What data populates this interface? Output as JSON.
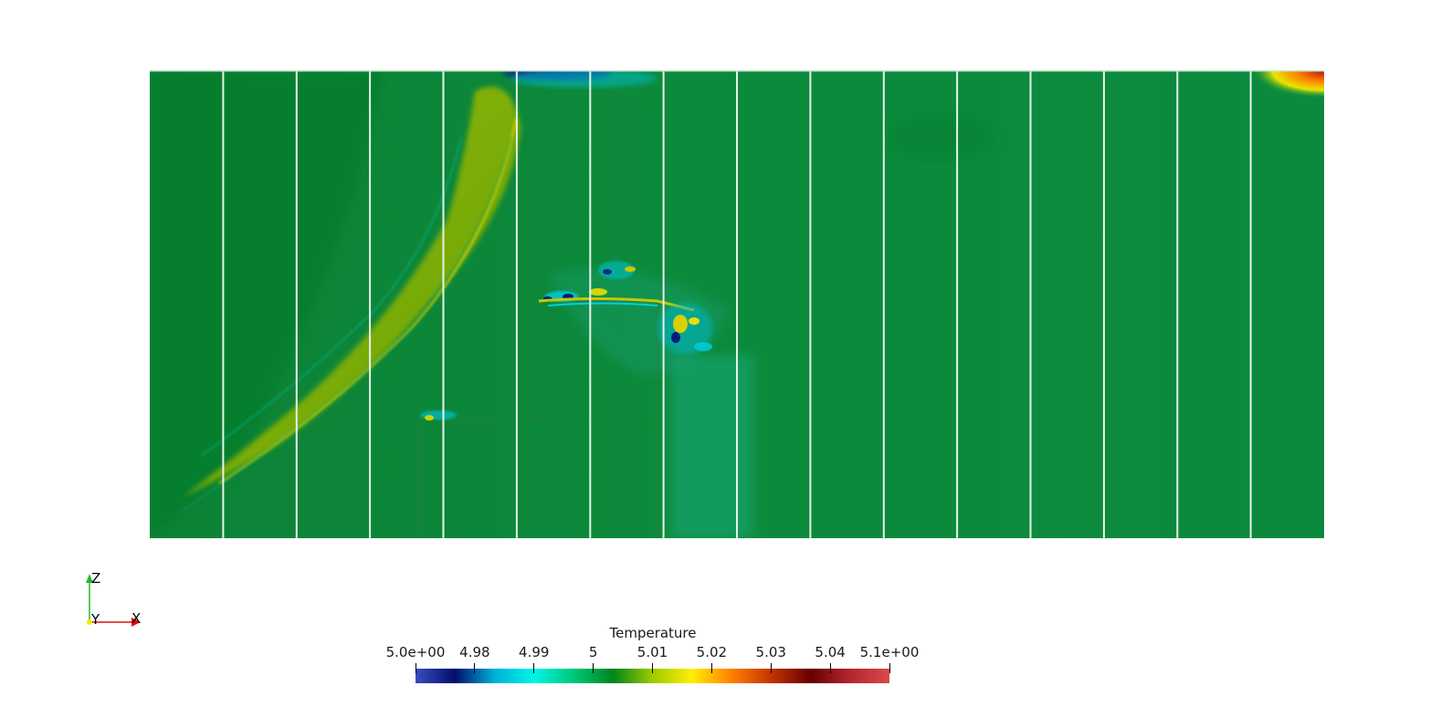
{
  "scalar_bar": {
    "title": "Temperature",
    "tick_labels": [
      "5.0e+00",
      "4.98",
      "4.99",
      "5",
      "5.01",
      "5.02",
      "5.03",
      "5.04",
      "5.1e+00"
    ],
    "range": [
      4.97,
      5.05
    ],
    "colormap": [
      "#3b4cc0",
      "#000f6b",
      "#00b0d8",
      "#00f5e8",
      "#00c87a",
      "#00851c",
      "#9ccb00",
      "#ffee00",
      "#ff8000",
      "#c43400",
      "#660000",
      "#b4262e",
      "#d94a4a"
    ]
  },
  "orientation_axes": {
    "z_label": "Z",
    "y_label": "Y",
    "x_label": "X",
    "z_color": "#22bb22",
    "x_color": "#dd1111",
    "y_color": "#eeee00"
  },
  "field": {
    "base_color": "#0b8a3a",
    "panel_count": 16,
    "panel_border_color": "#e8f2ea"
  }
}
